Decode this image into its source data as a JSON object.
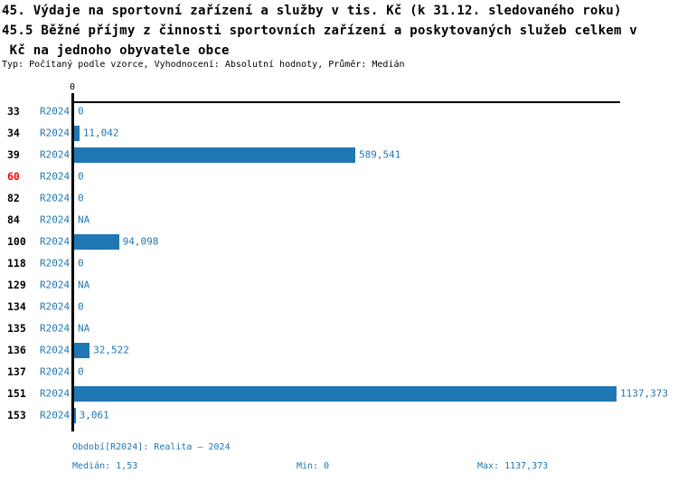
{
  "header": {
    "title_lines": [
      "45. Výdaje na sportovní zařízení a služby v tis. Kč (k 31.12. sledovaného roku)",
      "45.5 Běžné příjmy z činnosti sportovních zařízení a poskytovaných služeb celkem v",
      " Kč na jednoho obyvatele obce"
    ],
    "subtitle": "Typ: Počítaný podle vzorce, Vyhodnocení: Absolutní hodnoty, Průměr: Medián"
  },
  "colors": {
    "bar_blue": "#1f77b4",
    "text_blue": "#2077b4",
    "highlight_red": "#ff0000",
    "axis_black": "#000000"
  },
  "chart_data": {
    "type": "bar",
    "orientation": "horizontal",
    "axis_tick_label": "0",
    "series_label": "R2024",
    "xlim": [
      0,
      1137.373
    ],
    "grid": false,
    "rows": [
      {
        "id": "33",
        "period": "R2024",
        "value": 0,
        "label": "0",
        "highlight": false
      },
      {
        "id": "34",
        "period": "R2024",
        "value": 11.042,
        "label": "11,042",
        "highlight": false
      },
      {
        "id": "39",
        "period": "R2024",
        "value": 589.541,
        "label": "589,541",
        "highlight": false
      },
      {
        "id": "60",
        "period": "R2024",
        "value": 0,
        "label": "0",
        "highlight": true
      },
      {
        "id": "82",
        "period": "R2024",
        "value": 0,
        "label": "0",
        "highlight": false
      },
      {
        "id": "84",
        "period": "R2024",
        "value": null,
        "label": "NA",
        "highlight": false
      },
      {
        "id": "100",
        "period": "R2024",
        "value": 94.098,
        "label": "94,098",
        "highlight": false
      },
      {
        "id": "118",
        "period": "R2024",
        "value": 0,
        "label": "0",
        "highlight": false
      },
      {
        "id": "129",
        "period": "R2024",
        "value": null,
        "label": "NA",
        "highlight": false
      },
      {
        "id": "134",
        "period": "R2024",
        "value": 0,
        "label": "0",
        "highlight": false
      },
      {
        "id": "135",
        "period": "R2024",
        "value": null,
        "label": "NA",
        "highlight": false
      },
      {
        "id": "136",
        "period": "R2024",
        "value": 32.522,
        "label": "32,522",
        "highlight": false
      },
      {
        "id": "137",
        "period": "R2024",
        "value": 0,
        "label": "0",
        "highlight": false
      },
      {
        "id": "151",
        "period": "R2024",
        "value": 1137.373,
        "label": "1137,373",
        "highlight": false
      },
      {
        "id": "153",
        "period": "R2024",
        "value": 3.061,
        "label": "3,061",
        "highlight": false
      }
    ]
  },
  "footer": {
    "period_line": "Období[R2024]: Realita – 2024",
    "median": "Medián: 1,53",
    "min": "Min: 0",
    "max": "Max: 1137,373"
  }
}
